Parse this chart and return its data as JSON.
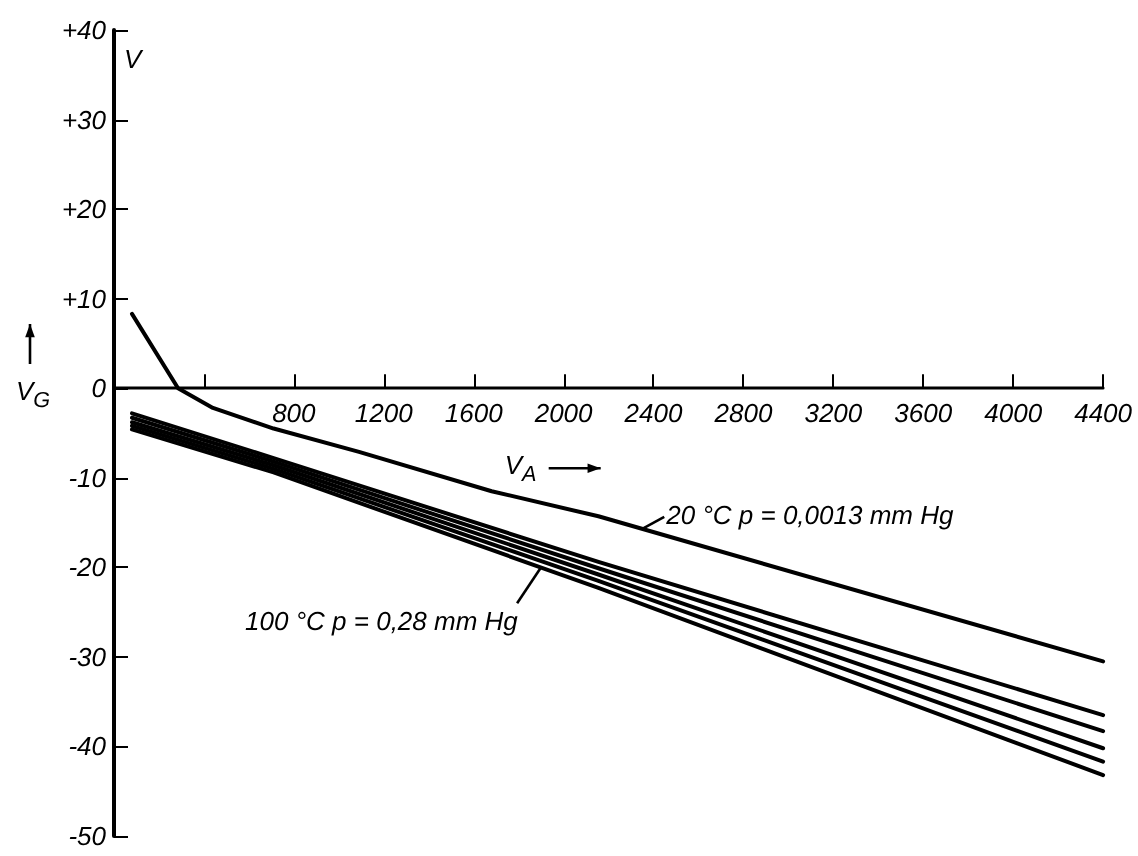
{
  "chart_data": {
    "type": "line",
    "xlabel": "V$_{A}$",
    "ylabel": "V$_{G}$",
    "annotations": [
      "V",
      {
        "text": "20 °C   p = 0,0013 mm Hg",
        "x": 2350,
        "y": -15.7
      },
      {
        "text": "100 °C   p = 0,28 mm Hg",
        "x": 1900,
        "y": -20.0
      }
    ],
    "marker": "none",
    "line_style": "solid",
    "xlim": [
      0,
      4400
    ],
    "xticks": [
      {
        "value": 400,
        "label": null
      },
      800,
      1200,
      1600,
      2000,
      2400,
      2800,
      3200,
      3600,
      4000,
      4400
    ],
    "ylim": [
      -50,
      40
    ],
    "yticks": [
      -50,
      -40,
      -30,
      -20,
      -10,
      0,
      {
        "value": 10,
        "label": "+10"
      },
      {
        "value": 20,
        "label": "+20"
      },
      {
        "value": 30,
        "label": "+30"
      },
      {
        "value": 40,
        "label": "+40"
      }
    ],
    "series": [
      {
        "color": "#000000",
        "x": [
          80,
          285,
          440,
          710,
          1090,
          1680,
          2155,
          4400
        ],
        "values": [
          8.3,
          0,
          -2.2,
          -4.5,
          -7.1,
          -11.5,
          -14.3,
          -30.5
        ]
      },
      {
        "color": "#000000",
        "x": [
          80,
          710,
          2155,
          4400
        ],
        "values": [
          -2.8,
          -7.8,
          -19.4,
          -36.5
        ]
      },
      {
        "color": "#000000",
        "x": [
          80,
          710,
          2155,
          4400
        ],
        "values": [
          -3.3,
          -8.2,
          -20.1,
          -38.3
        ]
      },
      {
        "color": "#000000",
        "x": [
          80,
          710,
          2155,
          4400
        ],
        "values": [
          -3.8,
          -8.6,
          -20.8,
          -40.2
        ]
      },
      {
        "color": "#000000",
        "x": [
          80,
          710,
          2155,
          4400
        ],
        "values": [
          -4.2,
          -9.0,
          -21.5,
          -41.7
        ]
      },
      {
        "color": "#000000",
        "x": [
          80,
          710,
          2155,
          4400
        ],
        "values": [
          -4.6,
          -9.4,
          -22.3,
          -43.2
        ]
      }
    ]
  }
}
